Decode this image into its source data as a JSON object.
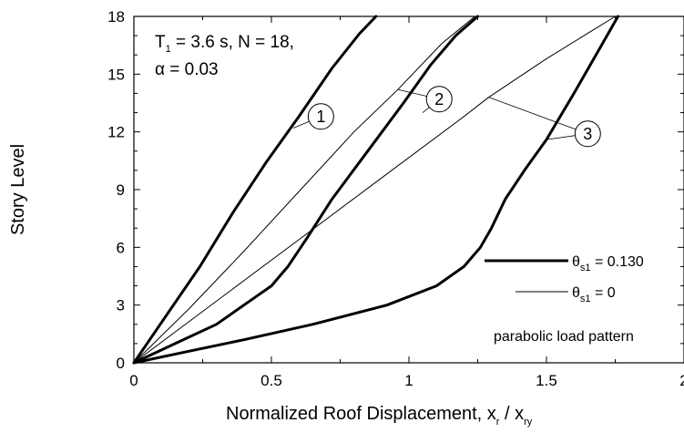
{
  "chart_data": {
    "type": "line",
    "xlabel": {
      "main": "Normalized Roof Displacement, x",
      "sub1": "r",
      "mid": " / x",
      "sub2": "ry"
    },
    "ylabel": "Story Level",
    "xlim": [
      0,
      2
    ],
    "ylim": [
      0,
      18
    ],
    "x_ticks": [
      0,
      0.5,
      1,
      1.5,
      2
    ],
    "x_tick_labels": [
      "0",
      "0.5",
      "1",
      "1.5",
      "2"
    ],
    "y_ticks": [
      0,
      3,
      6,
      9,
      12,
      15,
      18
    ],
    "y_tick_labels": [
      "0",
      "3",
      "6",
      "9",
      "12",
      "15",
      "18"
    ],
    "grid": false,
    "annotation": {
      "line1": {
        "a": "T",
        "sub": "1",
        "b": " = 3.6 s, N = 18,"
      },
      "line2": "α = 0.03"
    },
    "legend": {
      "placement": "bottom-right",
      "entries": [
        {
          "sym": "θ",
          "sub": "s1",
          "rest": " = 0.130",
          "style": "thick"
        },
        {
          "sym": "θ",
          "sub": "s1",
          "rest": " = 0",
          "style": "thin"
        }
      ],
      "note": "parabolic load pattern"
    },
    "callouts": [
      {
        "label": "1",
        "circle": [
          0.68,
          12.8
        ],
        "targets": [
          [
            0.58,
            12.2
          ]
        ]
      },
      {
        "label": "2",
        "circle": [
          1.11,
          13.7
        ],
        "targets": [
          [
            0.96,
            14.2
          ],
          [
            1.05,
            13.0
          ]
        ]
      },
      {
        "label": "3",
        "circle": [
          1.65,
          11.9
        ],
        "targets": [
          [
            1.29,
            13.8
          ],
          [
            1.5,
            11.6
          ]
        ]
      }
    ],
    "series": [
      {
        "label": "1",
        "style": "thick",
        "x": [
          0,
          0.12,
          0.24,
          0.36,
          0.48,
          0.6,
          0.72,
          0.82,
          0.88
        ],
        "y": [
          0,
          2.5,
          5,
          7.8,
          10.4,
          12.8,
          15.3,
          17.1,
          18
        ]
      },
      {
        "label": "1",
        "style": "thin",
        "x": [
          0,
          0.2,
          0.4,
          0.6,
          0.8,
          0.96,
          1.12,
          1.24
        ],
        "y": [
          0,
          2.8,
          5.8,
          8.9,
          12,
          14.2,
          16.6,
          18
        ]
      },
      {
        "label": "2",
        "style": "thick",
        "x": [
          0,
          0.15,
          0.3,
          0.4,
          0.5,
          0.56,
          0.63,
          0.72,
          0.85,
          0.98,
          1.08,
          1.17,
          1.25
        ],
        "y": [
          0,
          1,
          2,
          3,
          4,
          5,
          6.5,
          8.5,
          11,
          13.5,
          15.5,
          17,
          18
        ]
      },
      {
        "label": "2",
        "style": "thin",
        "x": [
          0,
          0.3,
          0.6,
          0.9,
          1.2,
          1.29,
          1.5,
          1.75
        ],
        "y": [
          0,
          3.2,
          6.4,
          9.6,
          12.8,
          13.8,
          15.8,
          18
        ]
      },
      {
        "label": "3",
        "style": "thick",
        "x": [
          0,
          0.2,
          0.4,
          0.65,
          0.92,
          1.1,
          1.2,
          1.26,
          1.3,
          1.35,
          1.42,
          1.5,
          1.6,
          1.7,
          1.76
        ],
        "y": [
          0,
          0.6,
          1.2,
          2,
          3,
          4,
          5,
          6,
          7,
          8.5,
          10,
          11.6,
          14,
          16.5,
          18
        ]
      }
    ]
  }
}
